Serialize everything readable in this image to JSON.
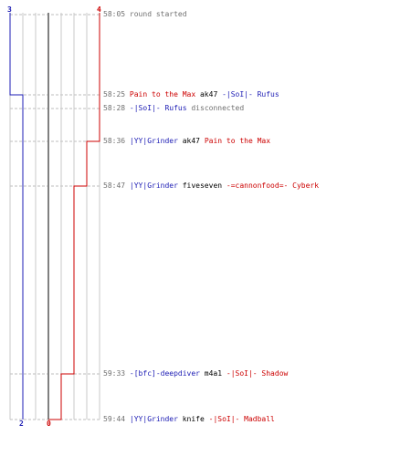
{
  "colors": {
    "blue_team": "#1c1cb4",
    "red_team": "#cc0000",
    "time": "#707070",
    "grid": "#c8c8c8",
    "guide": "#bdbdbd",
    "midline": "#808080"
  },
  "score": {
    "blue_start": "3",
    "blue_end": "2",
    "red_start": "4",
    "red_end": "0"
  },
  "events": [
    {
      "time": "58:05",
      "parts": [
        {
          "text": "round started",
          "style": "t"
        }
      ]
    },
    {
      "time": "58:25",
      "parts": [
        {
          "text": "Pain to the Max",
          "style": "r"
        },
        {
          "text": " ak47 ",
          "style": "p"
        },
        {
          "text": "-|SoI|- Rufus",
          "style": "b"
        }
      ]
    },
    {
      "time": "58:28",
      "parts": [
        {
          "text": "-|SoI|- Rufus",
          "style": "b"
        },
        {
          "text": " disconnected",
          "style": "t"
        }
      ]
    },
    {
      "time": "58:36",
      "parts": [
        {
          "text": "|YY|Grinder",
          "style": "b"
        },
        {
          "text": " ak47 ",
          "style": "p"
        },
        {
          "text": "Pain to the Max",
          "style": "r"
        }
      ]
    },
    {
      "time": "58:47",
      "parts": [
        {
          "text": "|YY|Grinder",
          "style": "b"
        },
        {
          "text": " fiveseven ",
          "style": "p"
        },
        {
          "text": "-=cannonfood=- Cyberk",
          "style": "r"
        }
      ]
    },
    {
      "time": "59:33",
      "parts": [
        {
          "text": "-[bfc]-deepdiver",
          "style": "b"
        },
        {
          "text": " m4a1 ",
          "style": "p"
        },
        {
          "text": "-|SoI|- Shadow",
          "style": "r"
        }
      ]
    },
    {
      "time": "59:44",
      "parts": [
        {
          "text": "|YY|Grinder",
          "style": "b"
        },
        {
          "text": " knife ",
          "style": "p"
        },
        {
          "text": "-|SoI|- Madball",
          "style": "r"
        }
      ]
    }
  ]
}
